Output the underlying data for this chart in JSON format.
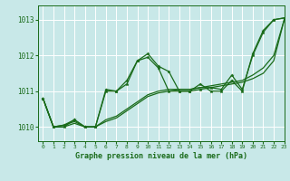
{
  "title": "Graphe pression niveau de la mer (hPa)",
  "bg_color": "#c8e8e8",
  "grid_color": "#ffffff",
  "line_color": "#1a6b1a",
  "xlim": [
    -0.5,
    23
  ],
  "ylim": [
    1009.6,
    1013.4
  ],
  "yticks": [
    1010,
    1011,
    1012,
    1013
  ],
  "xticks": [
    0,
    1,
    2,
    3,
    4,
    5,
    6,
    7,
    8,
    9,
    10,
    11,
    12,
    13,
    14,
    15,
    16,
    17,
    18,
    19,
    20,
    21,
    22,
    23
  ],
  "series": [
    {
      "y": [
        1010.8,
        1010.0,
        1010.0,
        1010.2,
        1010.0,
        1010.0,
        1011.0,
        1011.0,
        1011.3,
        1011.85,
        1012.05,
        1011.7,
        1011.55,
        1011.0,
        1011.0,
        1011.2,
        1011.0,
        1011.0,
        1011.3,
        1011.0,
        1012.05,
        1012.7,
        1013.0,
        1013.05
      ],
      "marker": true
    },
    {
      "y": [
        1010.8,
        1010.0,
        1010.05,
        1010.15,
        1010.0,
        1010.0,
        1010.15,
        1010.25,
        1010.45,
        1010.65,
        1010.85,
        1010.95,
        1011.0,
        1011.05,
        1011.05,
        1011.1,
        1011.1,
        1011.15,
        1011.2,
        1011.25,
        1011.35,
        1011.5,
        1011.85,
        1013.0
      ],
      "marker": false
    },
    {
      "y": [
        1010.8,
        1010.0,
        1010.05,
        1010.2,
        1010.0,
        1010.0,
        1011.05,
        1011.0,
        1011.2,
        1011.85,
        1011.95,
        1011.65,
        1011.0,
        1011.0,
        1011.0,
        1011.05,
        1011.1,
        1011.05,
        1011.45,
        1011.05,
        1012.0,
        1012.65,
        1013.0,
        1013.05
      ],
      "marker": true
    },
    {
      "y": [
        1010.8,
        1010.0,
        1010.0,
        1010.1,
        1010.0,
        1010.0,
        1010.2,
        1010.3,
        1010.5,
        1010.7,
        1010.9,
        1011.0,
        1011.05,
        1011.05,
        1011.05,
        1011.1,
        1011.15,
        1011.2,
        1011.25,
        1011.3,
        1011.45,
        1011.65,
        1012.0,
        1013.0
      ],
      "marker": false
    }
  ]
}
